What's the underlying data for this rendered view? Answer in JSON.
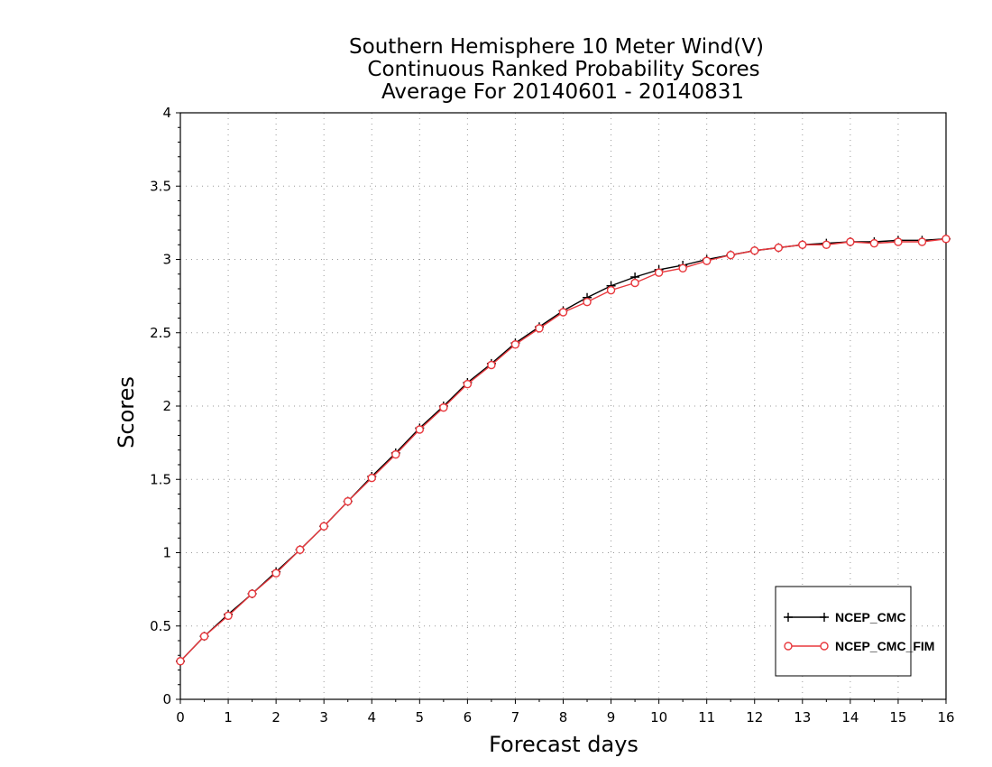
{
  "chart_data": {
    "type": "line",
    "title_lines": [
      "Southern Hemisphere 10 Meter Wind(V)",
      "Continuous Ranked Probability Scores",
      "Average For 20140601 - 20140831"
    ],
    "xlabel": "Forecast days",
    "ylabel": "Scores",
    "xlim": [
      0,
      16
    ],
    "ylim": [
      0,
      4
    ],
    "xticks": [
      "0",
      "1",
      "2",
      "3",
      "4",
      "5",
      "6",
      "7",
      "8",
      "9",
      "10",
      "11",
      "12",
      "13",
      "14",
      "15",
      "16"
    ],
    "yticks": [
      "0",
      "0.5",
      "1",
      "1.5",
      "2",
      "2.5",
      "3",
      "3.5",
      "4"
    ],
    "grid": true,
    "legend_position": "bottom-right",
    "x": [
      0,
      0.5,
      1,
      1.5,
      2,
      2.5,
      3,
      3.5,
      4,
      4.5,
      5,
      5.5,
      6,
      6.5,
      7,
      7.5,
      8,
      8.5,
      9,
      9.5,
      10,
      10.5,
      11,
      11.5,
      12,
      12.5,
      13,
      13.5,
      14,
      14.5,
      15,
      15.5,
      16
    ],
    "series": [
      {
        "name": "NCEP_CMC",
        "color": "#000000",
        "marker": "plus",
        "values": [
          0.26,
          0.43,
          0.58,
          0.72,
          0.87,
          1.02,
          1.18,
          1.35,
          1.52,
          1.68,
          1.85,
          2.0,
          2.16,
          2.29,
          2.43,
          2.54,
          2.65,
          2.74,
          2.82,
          2.88,
          2.93,
          2.96,
          3.0,
          3.03,
          3.06,
          3.08,
          3.1,
          3.11,
          3.12,
          3.12,
          3.13,
          3.13,
          3.14
        ]
      },
      {
        "name": "NCEP_CMC_FIM",
        "color": "#e8383d",
        "marker": "circle",
        "values": [
          0.26,
          0.43,
          0.57,
          0.72,
          0.86,
          1.02,
          1.18,
          1.35,
          1.51,
          1.67,
          1.84,
          1.99,
          2.15,
          2.28,
          2.42,
          2.53,
          2.64,
          2.71,
          2.79,
          2.84,
          2.91,
          2.94,
          2.99,
          3.03,
          3.06,
          3.08,
          3.1,
          3.1,
          3.12,
          3.11,
          3.12,
          3.12,
          3.14
        ]
      }
    ]
  }
}
